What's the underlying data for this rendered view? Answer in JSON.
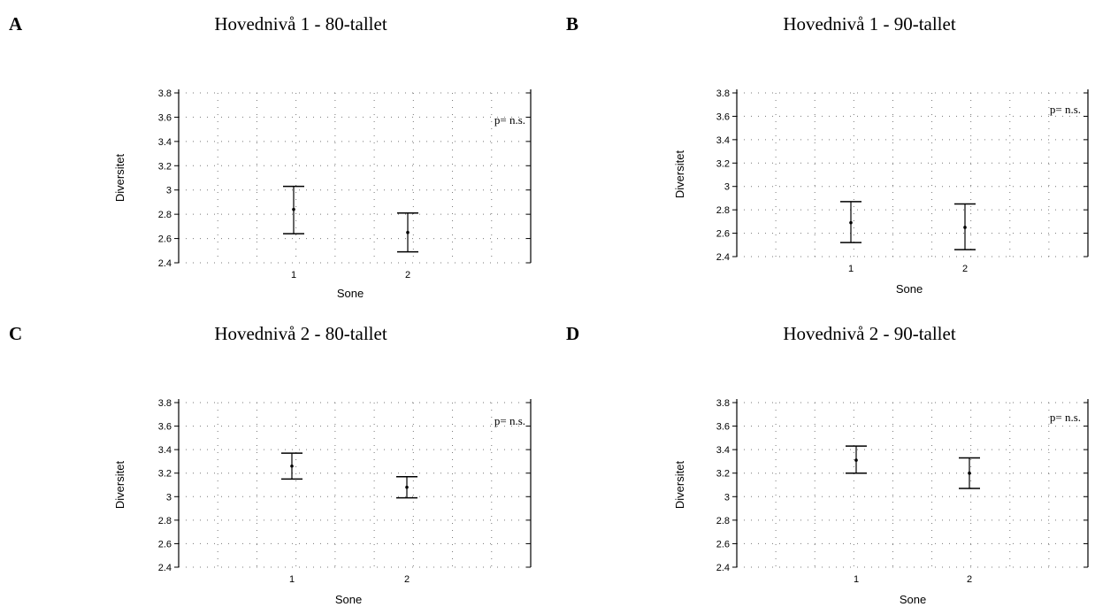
{
  "chart_data": [
    {
      "type": "errorbar",
      "panel_letter": "A",
      "title": "Hovednivå 1 - 80-tallet",
      "xlabel": "Sone",
      "ylabel": "Diversitet",
      "annotation": "p= n.s.",
      "categories": [
        "1",
        "2"
      ],
      "yticks": [
        "2.4",
        "2.6",
        "2.8",
        "3",
        "3.2",
        "3.4",
        "3.6",
        "3.8"
      ],
      "ylim": [
        2.4,
        3.8
      ],
      "grid": true,
      "points": [
        {
          "x": "1",
          "mean": 2.84,
          "lower": 2.64,
          "upper": 3.03
        },
        {
          "x": "2",
          "mean": 2.65,
          "lower": 2.49,
          "upper": 2.81
        }
      ]
    },
    {
      "type": "errorbar",
      "panel_letter": "B",
      "title": "Hovednivå 1 - 90-tallet",
      "xlabel": "Sone",
      "ylabel": "Diversitet",
      "annotation": "p= n.s.",
      "categories": [
        "1",
        "2"
      ],
      "yticks": [
        "2.4",
        "2.6",
        "2.8",
        "3",
        "3.2",
        "3.4",
        "3.6",
        "3.8"
      ],
      "ylim": [
        2.4,
        3.8
      ],
      "grid": true,
      "points": [
        {
          "x": "1",
          "mean": 2.69,
          "lower": 2.52,
          "upper": 2.87
        },
        {
          "x": "2",
          "mean": 2.65,
          "lower": 2.46,
          "upper": 2.85
        }
      ]
    },
    {
      "type": "errorbar",
      "panel_letter": "C",
      "title": "Hovednivå 2 - 80-tallet",
      "xlabel": "Sone",
      "ylabel": "Diversitet",
      "annotation": "p= n.s.",
      "categories": [
        "1",
        "2"
      ],
      "yticks": [
        "2.4",
        "2.6",
        "2.8",
        "3",
        "3.2",
        "3.4",
        "3.6",
        "3.8"
      ],
      "ylim": [
        2.4,
        3.8
      ],
      "grid": true,
      "points": [
        {
          "x": "1",
          "mean": 3.26,
          "lower": 3.15,
          "upper": 3.37
        },
        {
          "x": "2",
          "mean": 3.08,
          "lower": 2.99,
          "upper": 3.17
        }
      ]
    },
    {
      "type": "errorbar",
      "panel_letter": "D",
      "title": "Hovednivå 2 - 90-tallet",
      "xlabel": "Sone",
      "ylabel": "Diversitet",
      "annotation": "p= n.s.",
      "categories": [
        "1",
        "2"
      ],
      "yticks": [
        "2.4",
        "2.6",
        "2.8",
        "3",
        "3.2",
        "3.4",
        "3.6",
        "3.8"
      ],
      "ylim": [
        2.4,
        3.8
      ],
      "grid": true,
      "points": [
        {
          "x": "1",
          "mean": 3.31,
          "lower": 3.2,
          "upper": 3.43
        },
        {
          "x": "2",
          "mean": 3.2,
          "lower": 3.07,
          "upper": 3.33
        }
      ]
    }
  ]
}
